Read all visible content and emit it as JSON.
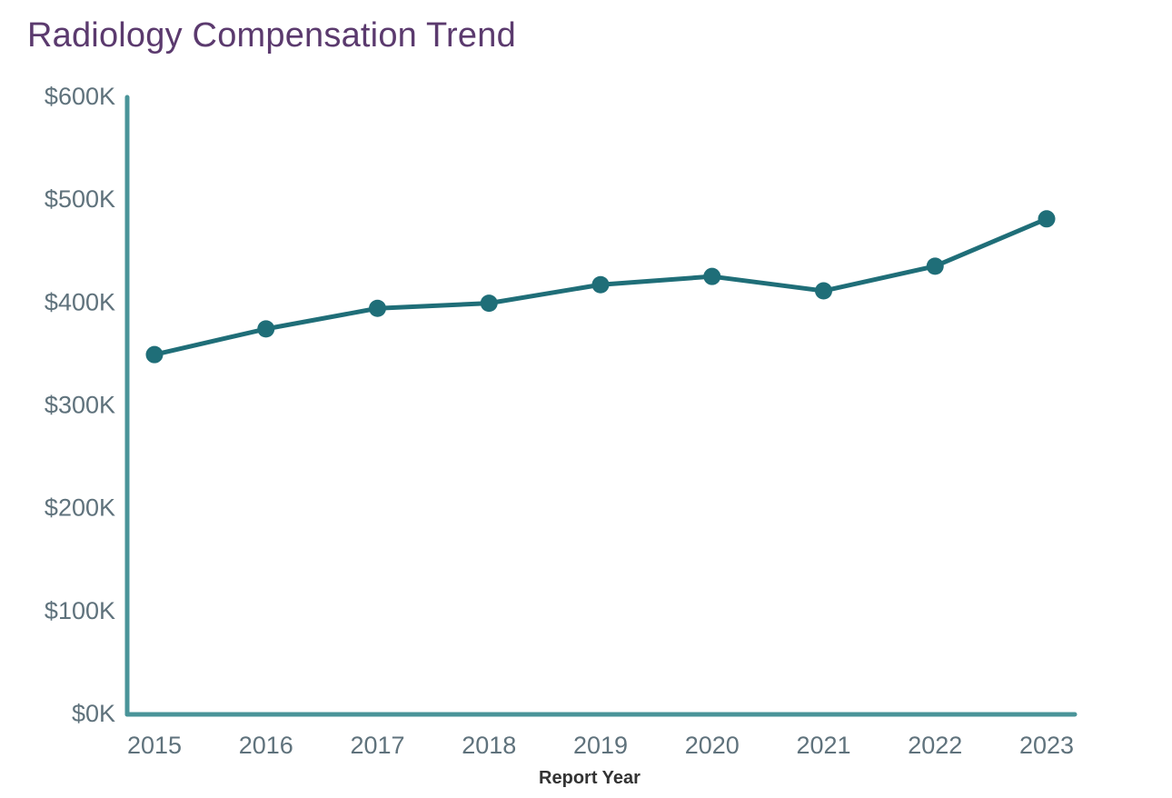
{
  "chart_data": {
    "type": "line",
    "title": "Radiology Compensation Trend",
    "xlabel": "Report Year",
    "ylabel": "",
    "categories": [
      "2015",
      "2016",
      "2017",
      "2018",
      "2019",
      "2020",
      "2021",
      "2022",
      "2023"
    ],
    "series": [
      {
        "name": "Radiology Compensation",
        "values": [
          348,
          373,
          393,
          398,
          416,
          424,
          410,
          434,
          480
        ],
        "unit": "$K"
      }
    ],
    "ylim": [
      0,
      600
    ],
    "yticks": [
      0,
      100,
      200,
      300,
      400,
      500,
      600
    ],
    "ytick_labels": [
      "$0K",
      "$100K",
      "$200K",
      "$300K",
      "$400K",
      "$500K",
      "$600K"
    ],
    "grid": false,
    "legend": "none",
    "colors": {
      "line": "#1f6e78",
      "axis": "#4a9499",
      "title": "#5b3a6e",
      "tick_labels": "#5f727c"
    }
  }
}
